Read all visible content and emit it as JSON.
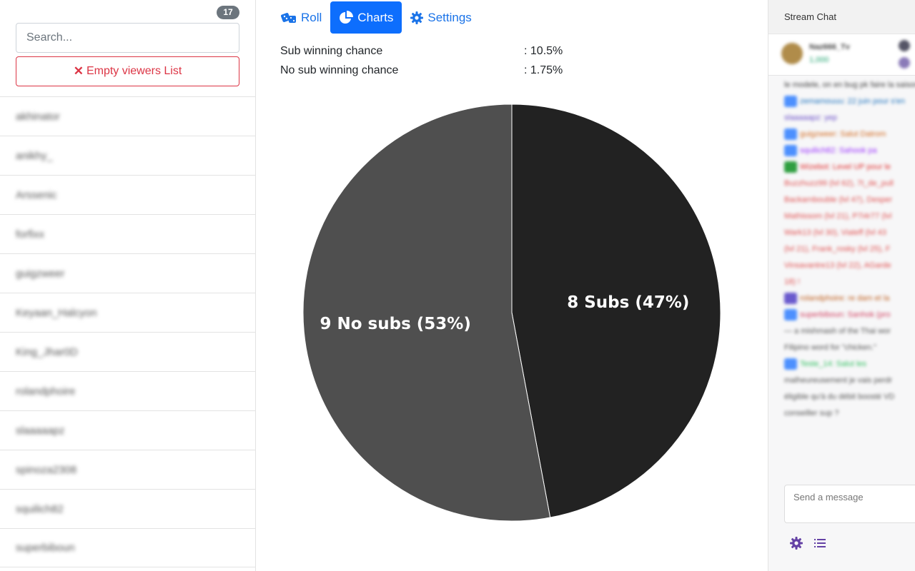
{
  "sidebar": {
    "viewer_count": "17",
    "search_placeholder": "Search...",
    "empty_button_label": "Empty viewers List",
    "viewers": [
      "akhinator",
      "anikhy_",
      "Arssenic",
      "forfixx",
      "guigzweer",
      "Keyaan_Halcyon",
      "King_Jhar0D",
      "rolandphoire",
      "slaaaaapz",
      "spinoza2308",
      "squilich82",
      "superbiboun"
    ]
  },
  "tabs": [
    {
      "label": "Roll",
      "icon": "dice-icon",
      "active": false
    },
    {
      "label": "Charts",
      "icon": "pie-chart-icon",
      "active": true
    },
    {
      "label": "Settings",
      "icon": "gear-icon",
      "active": false
    }
  ],
  "stats": [
    {
      "label": "Sub winning chance",
      "value": ": 10.5%"
    },
    {
      "label": "No sub winning chance",
      "value": ": 1.75%"
    }
  ],
  "chart_data": {
    "type": "pie",
    "title": "",
    "slices": [
      {
        "label": "8 Subs (47%)",
        "value": 8,
        "color": "#222222"
      },
      {
        "label": "9 No subs (53%)",
        "value": 9,
        "color": "#4f4f4f"
      }
    ]
  },
  "chat": {
    "title": "Stream Chat",
    "pinned_name": "Naz666_Tv",
    "pinned_sub": "1,000",
    "input_placeholder": "Send a message",
    "messages": [
      {
        "text": "le modele, on en bug pk faire la saison",
        "color": "#444",
        "icon": ""
      },
      {
        "text": "zemamouuu: 22 juin pour s'en",
        "color": "#1e73be",
        "icon": "#4d90fe"
      },
      {
        "text": "slaaaaapz: yep",
        "color": "#6a4fc8",
        "icon": ""
      },
      {
        "text": "guigzweer: Salut Datrom",
        "color": "#d2691e",
        "icon": "#4d90fe"
      },
      {
        "text": "squilich82: Sahook pa",
        "color": "#9b30ff",
        "icon": "#4d90fe"
      },
      {
        "text": "Wizebot: Level UP pour le",
        "color": "#e03030",
        "icon": "#2e9e3f"
      },
      {
        "text": "Buzzhuzz99 (lvl 62), 7t_de_pull",
        "color": "#e05050",
        "icon": ""
      },
      {
        "text": "Backarnbouble (lvl 47), Desper",
        "color": "#e05050",
        "icon": ""
      },
      {
        "text": "Mathissom (lvl 21), P7i4r77 (lvl",
        "color": "#e05050",
        "icon": ""
      },
      {
        "text": "Wark13 (lvl 30), Viateff (lvl 43",
        "color": "#e05050",
        "icon": ""
      },
      {
        "text": "(lvl 21), Frank_rosky (lvl 25), F",
        "color": "#e05050",
        "icon": ""
      },
      {
        "text": "Vinsavantre13 (lvl 22), AGarde",
        "color": "#e05050",
        "icon": ""
      },
      {
        "text": "18) !",
        "color": "#e05050",
        "icon": ""
      },
      {
        "text": "rolandphoire: re dam et la",
        "color": "#c06020",
        "icon": "#6a5acd"
      },
      {
        "text": "superbiboun: Sanhok (pro",
        "color": "#d04060",
        "icon": "#4d90fe"
      },
      {
        "text": "— a mishmash of the Thai wor",
        "color": "#555",
        "icon": ""
      },
      {
        "text": "Filipino word for \"chicken.\"",
        "color": "#555",
        "icon": ""
      },
      {
        "text": "Teste_14: Salut les",
        "color": "#30c060",
        "icon": "#4d90fe"
      },
      {
        "text": "malheureusement je vais perdr",
        "color": "#555",
        "icon": ""
      },
      {
        "text": "éligible qu'à du débit boosté VD",
        "color": "#555",
        "icon": ""
      },
      {
        "text": "conseiller sup ?",
        "color": "#555",
        "icon": ""
      }
    ]
  }
}
